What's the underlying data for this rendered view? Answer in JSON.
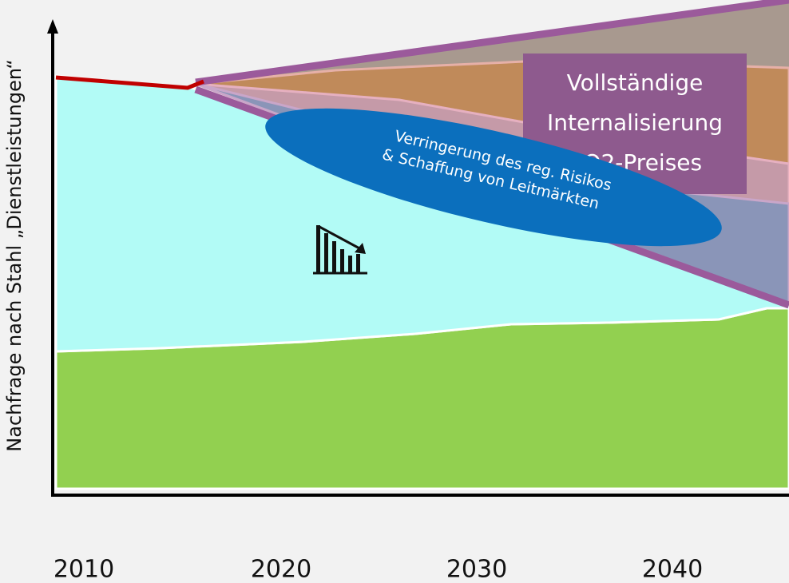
{
  "axis": {
    "y_label": "Nachfrage nach Stahl „Dienstleistungen“"
  },
  "x_labels": [
    "2010",
    "2020",
    "2030",
    "2040"
  ],
  "box": {
    "lines": [
      "Vollständige",
      "Internalisierung",
      "CO2-Preises"
    ]
  },
  "ellipse": {
    "lines": [
      "Verringerung des reg. Risikos",
      "& Schaffung von Leitmärkten"
    ]
  }
}
